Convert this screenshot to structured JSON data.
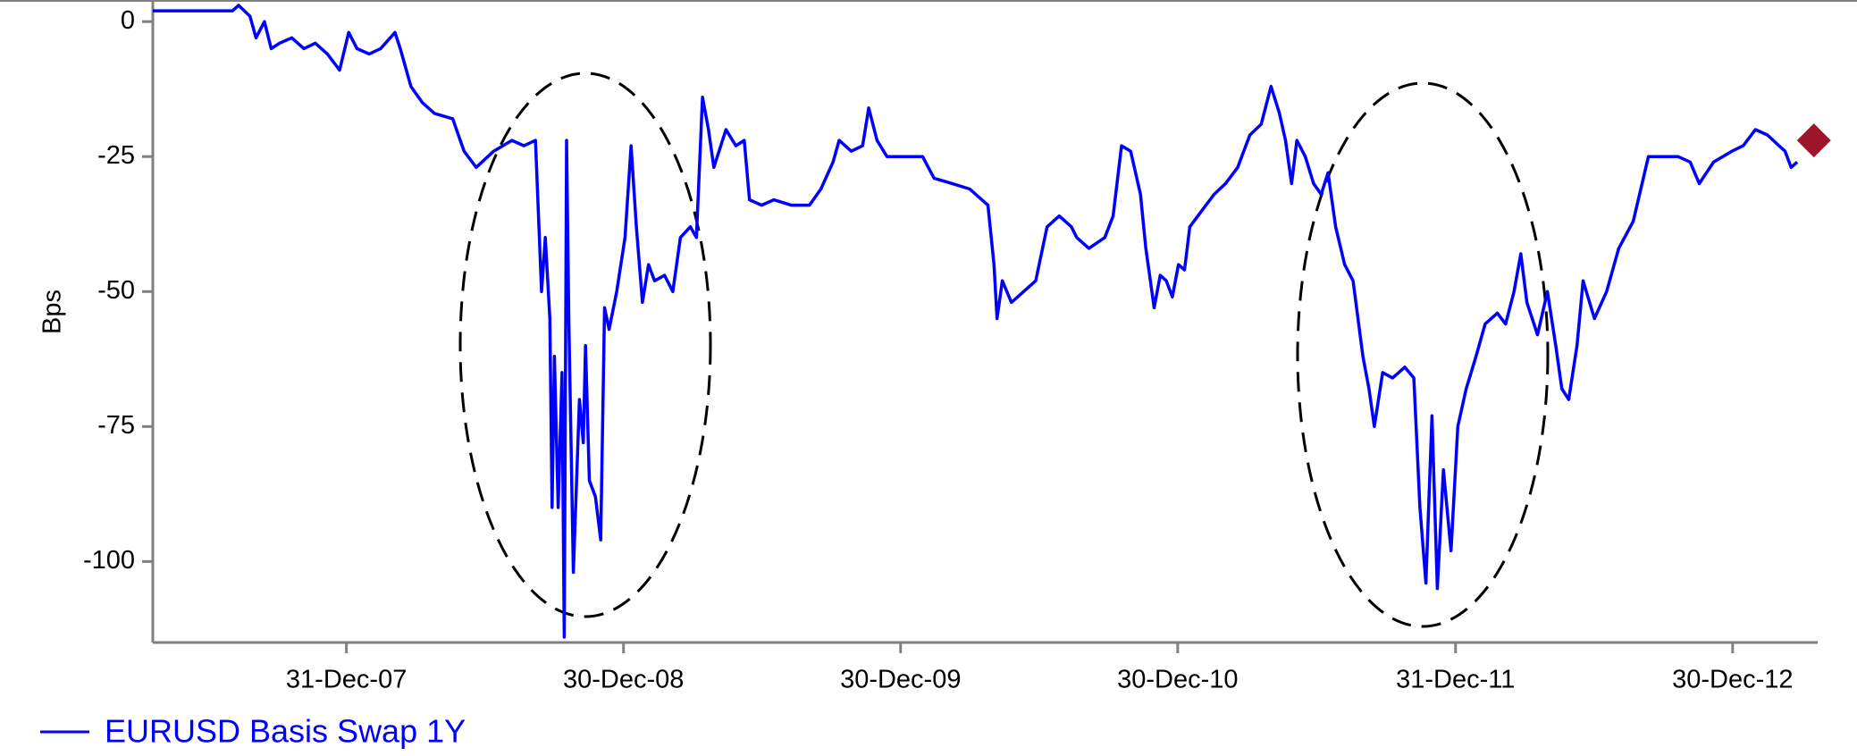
{
  "chart_data": {
    "type": "line",
    "y_label": "Bps",
    "x": [
      "2007-04-20",
      "2007-08-03",
      "2007-08-11",
      "2007-08-26",
      "2007-09-03",
      "2007-09-14",
      "2007-09-23",
      "2007-10-04",
      "2007-10-20",
      "2007-11-05",
      "2007-11-20",
      "2007-12-06",
      "2007-12-22",
      "2008-01-03",
      "2008-01-14",
      "2008-01-30",
      "2008-02-14",
      "2008-03-04",
      "2008-03-11",
      "2008-03-25",
      "2008-04-09",
      "2008-04-25",
      "2008-05-19",
      "2008-06-03",
      "2008-06-19",
      "2008-07-12",
      "2008-08-05",
      "2008-08-21",
      "2008-09-05",
      "2008-09-13",
      "2008-09-18",
      "2008-09-24",
      "2008-09-27",
      "2008-09-30",
      "2008-10-05",
      "2008-10-10",
      "2008-10-13",
      "2008-10-16",
      "2008-10-19",
      "2008-10-25",
      "2008-11-02",
      "2008-11-07",
      "2008-11-10",
      "2008-11-15",
      "2008-11-23",
      "2008-11-30",
      "2008-12-05",
      "2008-12-11",
      "2008-12-21",
      "2009-01-01",
      "2009-01-09",
      "2009-01-16",
      "2009-01-24",
      "2009-02-01",
      "2009-02-09",
      "2009-02-22",
      "2009-03-05",
      "2009-03-15",
      "2009-03-28",
      "2009-04-05",
      "2009-04-13",
      "2009-04-21",
      "2009-04-28",
      "2009-05-14",
      "2009-05-27",
      "2009-06-07",
      "2009-06-14",
      "2009-06-30",
      "2009-07-16",
      "2009-08-08",
      "2009-09-01",
      "2009-09-16",
      "2009-10-02",
      "2009-10-10",
      "2009-10-26",
      "2009-11-10",
      "2009-11-18",
      "2009-11-29",
      "2009-12-12",
      "2010-01-04",
      "2010-01-28",
      "2010-02-12",
      "2010-03-08",
      "2010-03-31",
      "2010-04-24",
      "2010-05-02",
      "2010-05-06",
      "2010-05-13",
      "2010-05-25",
      "2010-06-10",
      "2010-06-26",
      "2010-07-11",
      "2010-07-27",
      "2010-08-12",
      "2010-08-19",
      "2010-09-04",
      "2010-09-25",
      "2010-10-06",
      "2010-10-17",
      "2010-10-29",
      "2010-11-11",
      "2010-11-18",
      "2010-11-29",
      "2010-12-07",
      "2010-12-15",
      "2010-12-23",
      "2010-12-31",
      "2011-01-08",
      "2011-01-15",
      "2011-01-31",
      "2011-02-16",
      "2011-03-03",
      "2011-03-19",
      "2011-04-04",
      "2011-04-19",
      "2011-05-02",
      "2011-05-13",
      "2011-05-21",
      "2011-05-29",
      "2011-06-05",
      "2011-06-16",
      "2011-06-27",
      "2011-07-07",
      "2011-07-16",
      "2011-07-26",
      "2011-08-07",
      "2011-08-18",
      "2011-08-31",
      "2011-09-08",
      "2011-09-15",
      "2011-09-26",
      "2011-10-09",
      "2011-10-25",
      "2011-11-06",
      "2011-11-14",
      "2011-11-22",
      "2011-11-30",
      "2011-12-07",
      "2011-12-15",
      "2011-12-25",
      "2012-01-03",
      "2012-01-14",
      "2012-01-27",
      "2012-02-08",
      "2012-02-24",
      "2012-03-06",
      "2012-03-17",
      "2012-03-26",
      "2012-04-03",
      "2012-04-17",
      "2012-04-30",
      "2012-05-11",
      "2012-05-19",
      "2012-05-28",
      "2012-06-08",
      "2012-06-16",
      "2012-07-01",
      "2012-07-17",
      "2012-08-02",
      "2012-08-21",
      "2012-09-10",
      "2012-09-26",
      "2012-10-19",
      "2012-11-04",
      "2012-11-16",
      "2012-12-05",
      "2012-12-29",
      "2013-01-13",
      "2013-01-29",
      "2013-02-14",
      "2013-03-01",
      "2013-03-09",
      "2013-03-17",
      "2013-03-25"
    ],
    "series": [
      {
        "name": "EURUSD Basis Swap 1Y",
        "color": "#0000ff",
        "values": [
          2,
          2,
          3,
          1,
          -3,
          0,
          -5,
          -4,
          -3,
          -5,
          -4,
          -6,
          -9,
          -2,
          -5,
          -6,
          -5,
          -2,
          -5,
          -12,
          -15,
          -17,
          -18,
          -24,
          -27,
          -24,
          -22,
          -23,
          -22,
          -50,
          -40,
          -55,
          -90,
          -62,
          -90,
          -65,
          -114,
          -22,
          -55,
          -102,
          -70,
          -78,
          -60,
          -85,
          -88,
          -96,
          -53,
          -57,
          -50,
          -40,
          -23,
          -38,
          -52,
          -45,
          -48,
          -47,
          -50,
          -40,
          -38,
          -40,
          -14,
          -20,
          -27,
          -20,
          -23,
          -22,
          -33,
          -34,
          -33,
          -34,
          -34,
          -31,
          -26,
          -22,
          -24,
          -23,
          -16,
          -22,
          -25,
          -25,
          -25,
          -29,
          -30,
          -31,
          -34,
          -45,
          -55,
          -48,
          -52,
          -50,
          -48,
          -38,
          -36,
          -38,
          -40,
          -42,
          -40,
          -36,
          -23,
          -24,
          -32,
          -42,
          -53,
          -47,
          -48,
          -51,
          -45,
          -46,
          -38,
          -35,
          -32,
          -30,
          -27,
          -21,
          -19,
          -12,
          -17,
          -22,
          -30,
          -22,
          -25,
          -30,
          -32,
          -28,
          -38,
          -45,
          -48,
          -62,
          -68,
          -75,
          -65,
          -66,
          -64,
          -66,
          -90,
          -104,
          -73,
          -105,
          -83,
          -98,
          -75,
          -68,
          -62,
          -56,
          -54,
          -56,
          -50,
          -43,
          -52,
          -58,
          -50,
          -60,
          -68,
          -70,
          -60,
          -48,
          -55,
          -50,
          -42,
          -37,
          -25,
          -25,
          -25,
          -26,
          -30,
          -26,
          -24,
          -23,
          -20,
          -21,
          -23,
          -24,
          -27,
          -26
        ]
      }
    ],
    "marker": {
      "x": "2013-04-16",
      "value": -22,
      "color": "#a0142c"
    },
    "xlim": [
      "2007-04-20",
      "2013-04-21"
    ],
    "xticks": [
      {
        "value": "2007-12-31",
        "label": "31-Dec-07"
      },
      {
        "value": "2008-12-30",
        "label": "30-Dec-08"
      },
      {
        "value": "2009-12-30",
        "label": "30-Dec-09"
      },
      {
        "value": "2010-12-30",
        "label": "30-Dec-10"
      },
      {
        "value": "2011-12-31",
        "label": "31-Dec-11"
      },
      {
        "value": "2012-12-30",
        "label": "30-Dec-12"
      }
    ],
    "ylim": [
      -115,
      4
    ],
    "yticks": [
      0,
      -25,
      -50,
      -75,
      -100
    ],
    "grid": false
  }
}
